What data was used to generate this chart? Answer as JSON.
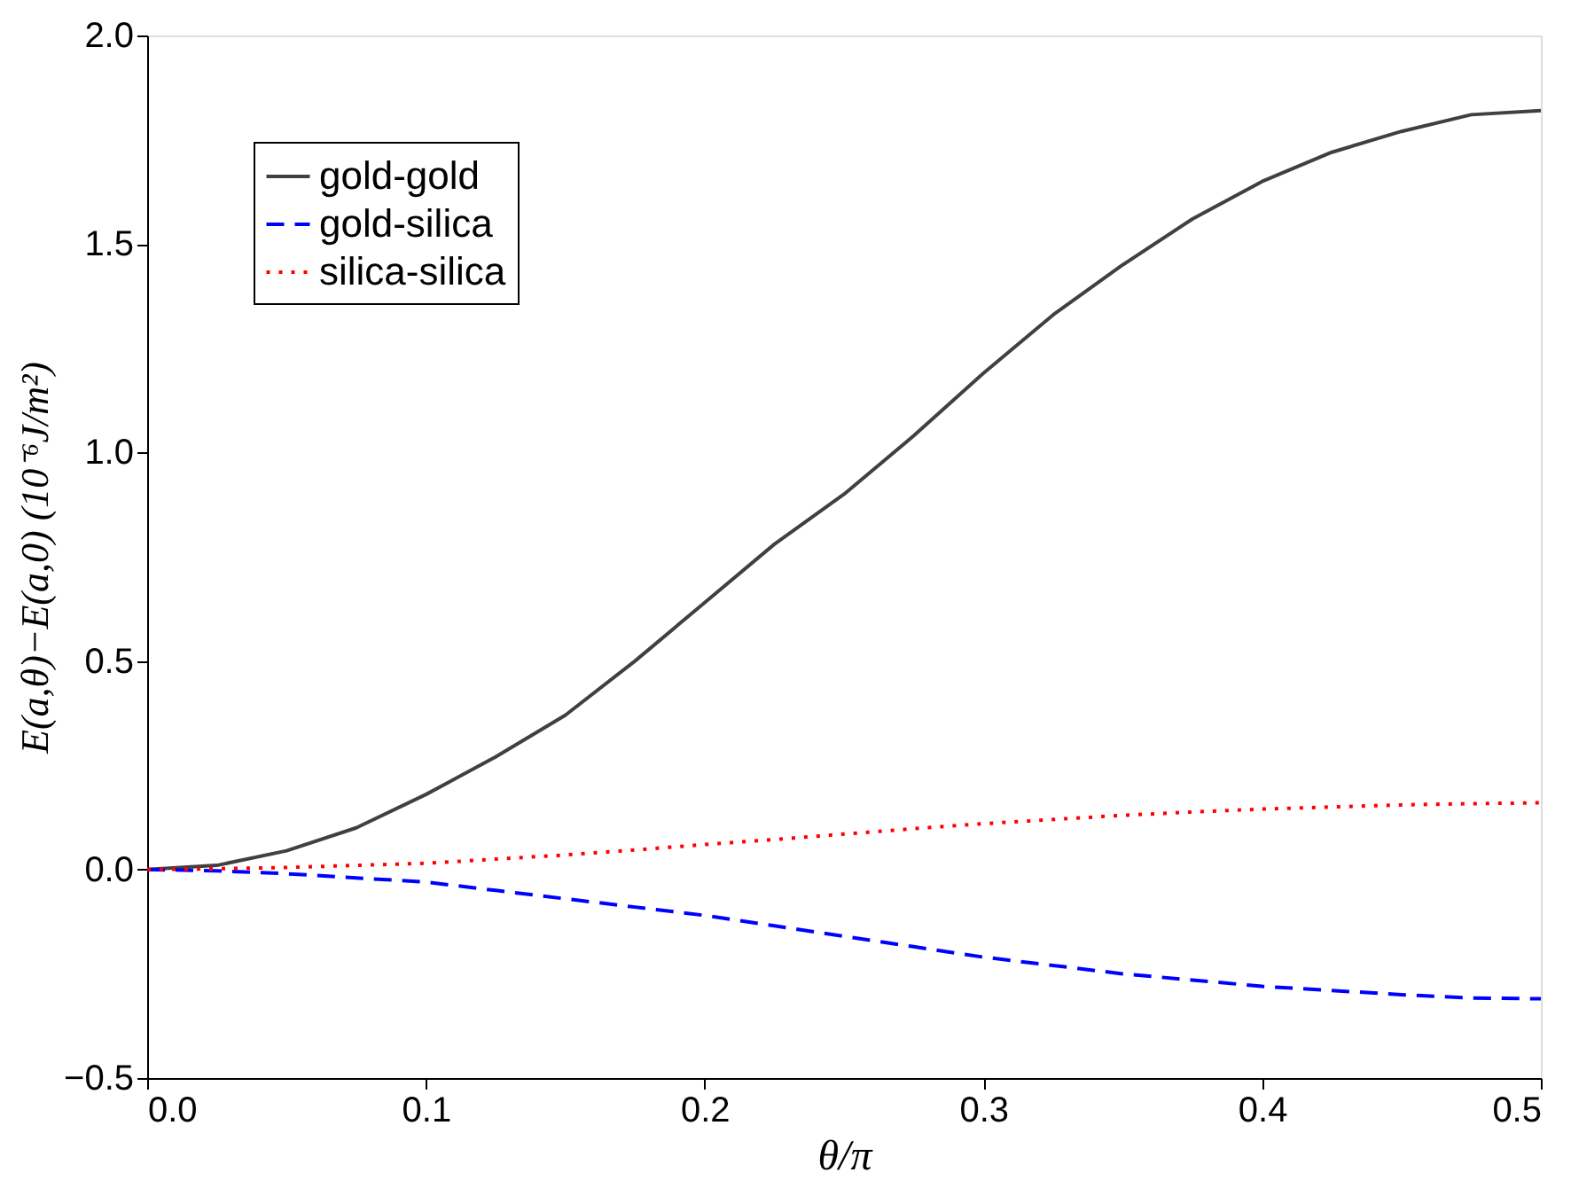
{
  "chart_data": {
    "type": "line",
    "xlabel": "θ/π",
    "ylabel": "E(a,θ)−E(a,0)  (10⁻⁶J/m²)",
    "xlim": [
      0,
      0.5
    ],
    "xticks": [
      {
        "value": 0,
        "label": "0.0"
      },
      0.1,
      0.2,
      0.3,
      0.4,
      0.5
    ],
    "ylim": [
      -0.5,
      2.0
    ],
    "yticks": [
      -0.5,
      {
        "value": 0,
        "label": "0.0"
      },
      0.5,
      {
        "value": 1,
        "label": "1.0"
      },
      1.5,
      {
        "value": 2,
        "label": "2.0"
      }
    ],
    "grid": false,
    "legend": "top left",
    "marker": "none",
    "x": [
      0,
      0.025,
      0.05,
      0.075,
      0.1,
      0.125,
      0.15,
      0.175,
      0.2,
      0.225,
      0.25,
      0.275,
      0.3,
      0.325,
      0.35,
      0.375,
      0.4,
      0.425,
      0.45,
      0.475,
      0.5
    ],
    "series": [
      {
        "name": "gold-gold",
        "color": "#404040",
        "line_style": "solid",
        "values": [
          0,
          0.01,
          0.045,
          0.1,
          0.18,
          0.27,
          0.37,
          0.5,
          0.64,
          0.78,
          0.9,
          1.04,
          1.19,
          1.33,
          1.45,
          1.56,
          1.65,
          1.72,
          1.77,
          1.81,
          1.82
        ]
      },
      {
        "name": "gold-silica",
        "color": "#0000ff",
        "line_style": "dashed",
        "values": [
          0,
          -0.003,
          -0.01,
          -0.02,
          -0.03,
          -0.05,
          -0.07,
          -0.09,
          -0.11,
          -0.135,
          -0.16,
          -0.185,
          -0.21,
          -0.23,
          -0.25,
          -0.265,
          -0.28,
          -0.29,
          -0.3,
          -0.308,
          -0.31
        ]
      },
      {
        "name": "silica-silica",
        "color": "#ff0000",
        "line_style": "dotted",
        "values": [
          0,
          0.002,
          0.005,
          0.01,
          0.015,
          0.025,
          0.035,
          0.047,
          0.06,
          0.072,
          0.085,
          0.098,
          0.11,
          0.12,
          0.13,
          0.138,
          0.145,
          0.15,
          0.155,
          0.158,
          0.16
        ]
      }
    ]
  }
}
